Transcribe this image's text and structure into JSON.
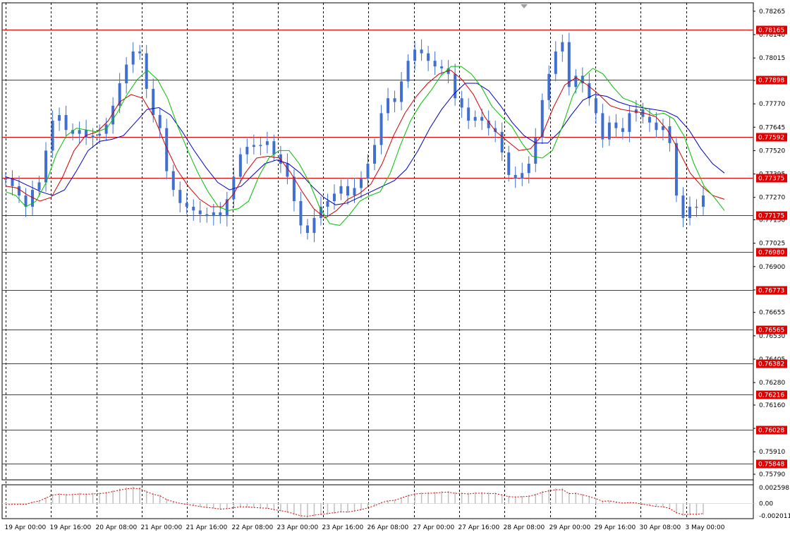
{
  "chart_data": {
    "type": "candlestick",
    "timeframe_labels": [
      "19 Apr 00:00",
      "19 Apr 16:00",
      "20 Apr 08:00",
      "21 Apr 00:00",
      "21 Apr 16:00",
      "22 Apr 08:00",
      "23 Apr 00:00",
      "23 Apr 16:00",
      "26 Apr 08:00",
      "27 Apr 00:00",
      "27 Apr 16:00",
      "28 Apr 08:00",
      "29 Apr 00:00",
      "29 Apr 16:00",
      "30 Apr 08:00",
      "3 May 00:00"
    ],
    "price_ticks": [
      "0.78265",
      "0.78140",
      "0.78015",
      "0.77895",
      "0.77770",
      "0.77645",
      "0.77520",
      "0.77395",
      "0.77270",
      "0.77150",
      "0.77025",
      "0.76900",
      "0.76775",
      "0.76655",
      "0.76530",
      "0.76405",
      "0.76280",
      "0.76160",
      "0.76035",
      "0.75910",
      "0.75790"
    ],
    "horizontal_levels": [
      "0.78165",
      "0.77898",
      "0.77592",
      "0.77375",
      "0.77175",
      "0.76980",
      "0.76773",
      "0.76565",
      "0.76382",
      "0.76216",
      "0.76028",
      "0.75848"
    ],
    "ylim": [
      0.7576,
      0.7831
    ],
    "price_series": [
      0.7737,
      0.7733,
      0.7728,
      0.7722,
      0.7731,
      0.7735,
      0.7752,
      0.7768,
      0.7771,
      0.7763,
      0.7761,
      0.7763,
      0.7759,
      0.776,
      0.7761,
      0.7766,
      0.7776,
      0.7788,
      0.7798,
      0.7805,
      0.7804,
      0.7785,
      0.7771,
      0.7764,
      0.7741,
      0.7731,
      0.7724,
      0.7722,
      0.772,
      0.7718,
      0.7717,
      0.7719,
      0.7717,
      0.7726,
      0.7738,
      0.775,
      0.7754,
      0.7755,
      0.7755,
      0.7757,
      0.775,
      0.7745,
      0.7738,
      0.7725,
      0.7712,
      0.7708,
      0.7716,
      0.7722,
      0.7725,
      0.7729,
      0.7733,
      0.7728,
      0.7732,
      0.7737,
      0.7745,
      0.7755,
      0.7772,
      0.778,
      0.7778,
      0.7789,
      0.78,
      0.7806,
      0.7804,
      0.78,
      0.7797,
      0.7796,
      0.7793,
      0.778,
      0.7775,
      0.7768,
      0.777,
      0.7768,
      0.7764,
      0.7762,
      0.7751,
      0.7739,
      0.7737,
      0.774,
      0.7745,
      0.7759,
      0.7779,
      0.7793,
      0.7805,
      0.781,
      0.7786,
      0.7792,
      0.7788,
      0.778,
      0.7772,
      0.7758,
      0.7767,
      0.7764,
      0.7762,
      0.7772,
      0.7774,
      0.777,
      0.7767,
      0.7763,
      0.7765,
      0.7756,
      0.7728,
      0.7716,
      0.7722,
      0.7722,
      0.7728
    ],
    "ma_fast": [
      0.773,
      0.7728,
      0.7722,
      0.7725,
      0.7735,
      0.775,
      0.776,
      0.7764,
      0.7763,
      0.7762,
      0.7764,
      0.7772,
      0.7782,
      0.779,
      0.7795,
      0.779,
      0.778,
      0.7765,
      0.7752,
      0.774,
      0.773,
      0.7722,
      0.772,
      0.7721,
      0.7725,
      0.7738,
      0.7748,
      0.7752,
      0.7752,
      0.7745,
      0.7735,
      0.7722,
      0.7713,
      0.7712,
      0.7718,
      0.7725,
      0.7728,
      0.773,
      0.774,
      0.7755,
      0.7768,
      0.7777,
      0.7784,
      0.7792,
      0.7797,
      0.7797,
      0.7793,
      0.7786,
      0.7776,
      0.777,
      0.7765,
      0.7756,
      0.7749,
      0.7748,
      0.7752,
      0.7765,
      0.7781,
      0.7791,
      0.7796,
      0.7793,
      0.7786,
      0.778,
      0.7778,
      0.7775,
      0.7771,
      0.7772,
      0.7769,
      0.776,
      0.7745,
      0.7733,
      0.7727,
      0.772
    ],
    "ma_mid": [
      0.7733,
      0.7732,
      0.7728,
      0.7725,
      0.7727,
      0.7738,
      0.7752,
      0.776,
      0.7762,
      0.7768,
      0.7778,
      0.7782,
      0.778,
      0.777,
      0.7755,
      0.7742,
      0.7733,
      0.7726,
      0.7722,
      0.7722,
      0.7729,
      0.774,
      0.7748,
      0.7749,
      0.7748,
      0.774,
      0.773,
      0.7721,
      0.7716,
      0.772,
      0.7726,
      0.7729,
      0.7734,
      0.7745,
      0.776,
      0.7772,
      0.7781,
      0.7788,
      0.7793,
      0.7795,
      0.779,
      0.7782,
      0.777,
      0.7762,
      0.7757,
      0.7752,
      0.7753,
      0.776,
      0.7775,
      0.7787,
      0.7791,
      0.7787,
      0.7782,
      0.7776,
      0.7774,
      0.7773,
      0.7772,
      0.777,
      0.7763,
      0.7752,
      0.774,
      0.7733,
      0.7728,
      0.7726
    ],
    "ma_slow": [
      0.7738,
      0.7736,
      0.7733,
      0.773,
      0.7728,
      0.7731,
      0.7741,
      0.7752,
      0.7757,
      0.7758,
      0.776,
      0.7767,
      0.7774,
      0.7775,
      0.7771,
      0.7762,
      0.7752,
      0.7743,
      0.7735,
      0.7731,
      0.7733,
      0.7739,
      0.7745,
      0.7747,
      0.7745,
      0.774,
      0.7733,
      0.7727,
      0.7723,
      0.7724,
      0.7727,
      0.773,
      0.7733,
      0.7736,
      0.7742,
      0.7752,
      0.7764,
      0.7774,
      0.7782,
      0.7788,
      0.7788,
      0.7784,
      0.7776,
      0.7767,
      0.776,
      0.7756,
      0.7756,
      0.7762,
      0.7771,
      0.7779,
      0.7782,
      0.7781,
      0.7778,
      0.7776,
      0.7775,
      0.7774,
      0.7773,
      0.777,
      0.7763,
      0.7753,
      0.7745,
      0.774
    ],
    "oscillator_ticks": [
      "0.002598",
      "0.00",
      "-0.002011"
    ],
    "colors": {
      "candle": "#3f6fd0",
      "level": "#e00000",
      "level_label_bg": "#e00000",
      "grid": "#000000",
      "ma_fast": "#00c000",
      "ma_mid": "#d00000",
      "ma_slow": "#0000c0",
      "oscillator_bar": "#c0c0c0",
      "oscillator_line": "#d00000"
    }
  }
}
